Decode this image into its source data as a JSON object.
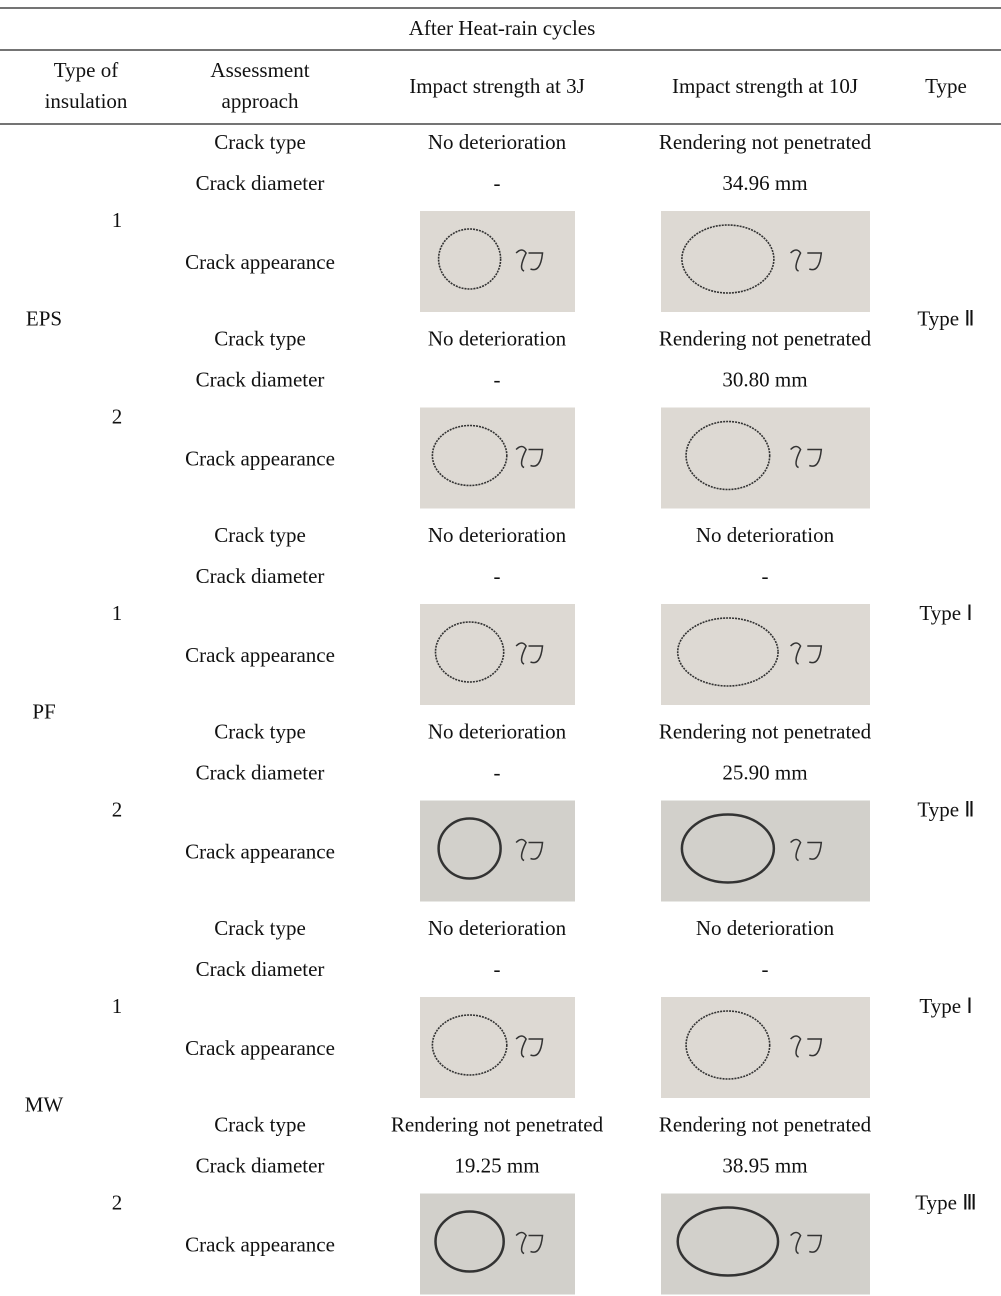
{
  "header": {
    "title": "After Heat-rain cycles",
    "columns": [
      "Type of insulation",
      "Assessment approach",
      "Impact strength at 3J",
      "Impact strength at 10J",
      "Type"
    ]
  },
  "row_labels": [
    "Crack type",
    "Crack diameter",
    "Crack appearance"
  ],
  "groups": [
    {
      "insulation": "EPS",
      "type": "Type Ⅱ",
      "samples": [
        {
          "id": "1",
          "crack_type": [
            "No deterioration",
            "Rendering not penetrated"
          ],
          "crack_diameter": [
            "-",
            "34.96 mm"
          ]
        },
        {
          "id": "2",
          "crack_type": [
            "No deterioration",
            "Rendering not penetrated"
          ],
          "crack_diameter": [
            "-",
            "30.80 mm"
          ]
        }
      ]
    },
    {
      "insulation": "PF",
      "samples": [
        {
          "id": "1",
          "type": "Type Ⅰ",
          "crack_type": [
            "No deterioration",
            "No deterioration"
          ],
          "crack_diameter": [
            "-",
            "-"
          ]
        },
        {
          "id": "2",
          "type": "Type Ⅱ",
          "crack_type": [
            "No deterioration",
            "Rendering not penetrated"
          ],
          "crack_diameter": [
            "-",
            "25.90 mm"
          ]
        }
      ]
    },
    {
      "insulation": "MW",
      "samples": [
        {
          "id": "1",
          "type": "Type Ⅰ",
          "crack_type": [
            "No deterioration",
            "No deterioration"
          ],
          "crack_diameter": [
            "-",
            "-"
          ]
        },
        {
          "id": "2",
          "type": "Type Ⅲ",
          "crack_type": [
            "Rendering not penetrated",
            "Rendering not penetrated"
          ],
          "crack_diameter": [
            "19.25 mm",
            "38.95 mm"
          ]
        }
      ]
    }
  ]
}
